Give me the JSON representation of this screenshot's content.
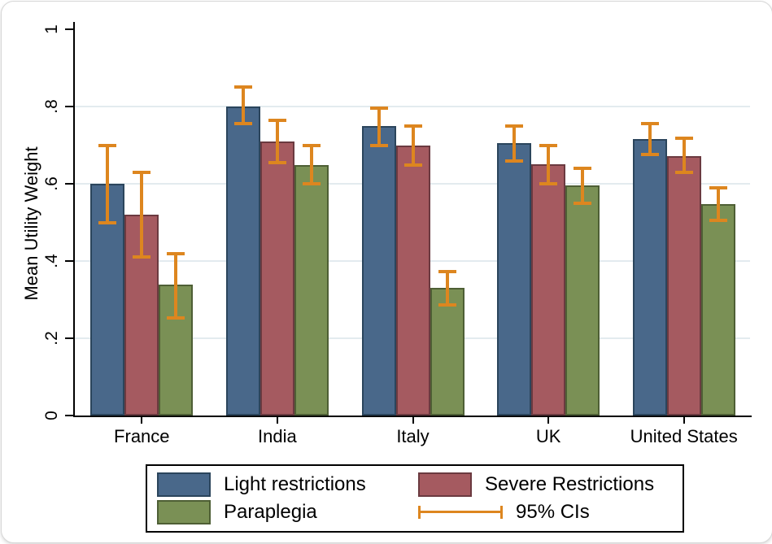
{
  "figure": {
    "background": "#ffffff",
    "frame_border_color": "#d7d7d7",
    "axis_color": "#000000",
    "gridline_color": "#e3ebef"
  },
  "chart_data": {
    "type": "bar",
    "title": "",
    "xlabel": "",
    "ylabel": "Mean Utility Weight",
    "ylim": [
      0,
      1
    ],
    "yticks": [
      0,
      0.2,
      0.4,
      0.6,
      0.8,
      1
    ],
    "ytick_labels": [
      "0",
      ".2",
      ".4",
      ".6",
      ".8",
      "1"
    ],
    "grid_values": [
      0.2,
      0.4,
      0.6,
      0.8
    ],
    "grid": "horizontal gridlines at labeled ticks .2 through .8, none at 1",
    "legend_position": "bottom-center, boxed, 2 columns",
    "categories": [
      "France",
      "India",
      "Italy",
      "UK",
      "United States"
    ],
    "series": [
      {
        "name": "Light restrictions",
        "color": "#49688a",
        "border_color": "#2b455c",
        "values": [
          0.6,
          0.8,
          0.75,
          0.705,
          0.715
        ],
        "ci_low": [
          0.5,
          0.755,
          0.7,
          0.66,
          0.675
        ],
        "ci_high": [
          0.7,
          0.85,
          0.795,
          0.75,
          0.755
        ]
      },
      {
        "name": "Severe Restrictions",
        "color": "#a55a60",
        "border_color": "#6b3a40",
        "values": [
          0.52,
          0.71,
          0.7,
          0.65,
          0.672
        ],
        "ci_low": [
          0.41,
          0.655,
          0.648,
          0.6,
          0.63
        ],
        "ci_high": [
          0.63,
          0.765,
          0.75,
          0.7,
          0.718
        ]
      },
      {
        "name": "Paraplegia",
        "color": "#7a9055",
        "border_color": "#4e5f35",
        "values": [
          0.34,
          0.648,
          0.33,
          0.595,
          0.548
        ],
        "ci_low": [
          0.253,
          0.6,
          0.287,
          0.55,
          0.506
        ],
        "ci_high": [
          0.42,
          0.698,
          0.373,
          0.64,
          0.59
        ]
      }
    ],
    "ci_color": "#dd861f",
    "ci_legend_label": "95% CIs"
  },
  "legend": {
    "row1": [
      "Light restrictions",
      "Severe Restrictions"
    ],
    "row2": [
      "Paraplegia",
      "95% CIs"
    ]
  }
}
